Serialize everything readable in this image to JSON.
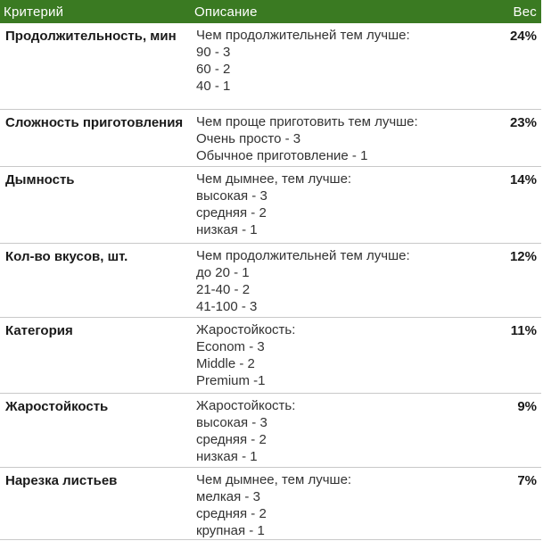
{
  "table": {
    "headers": {
      "criterion": "Критерий",
      "description": "Описание",
      "weight": "Вес"
    },
    "rows": [
      {
        "criterion": "Продолжительность, мин",
        "description": [
          "Чем продолжительней тем лучше:",
          "90 - 3",
          "60 - 2",
          "40 - 1"
        ],
        "weight": "24%"
      },
      {
        "criterion": "Сложность приготовления",
        "description": [
          "Чем проще приготовить тем лучше:",
          "Очень просто - 3",
          "Обычное приготовление - 1"
        ],
        "weight": "23%"
      },
      {
        "criterion": "Дымность",
        "description": [
          "Чем дымнее, тем лучше:",
          "высокая - 3",
          "средняя - 2",
          "низкая - 1"
        ],
        "weight": "14%"
      },
      {
        "criterion": "Кол-во вкусов, шт.",
        "description": [
          "Чем продолжительней тем лучше:",
          "до 20 - 1",
          "21-40 - 2",
          "41-100 - 3"
        ],
        "weight": "12%"
      },
      {
        "criterion": "Категория",
        "description": [
          "Жаростойкость:",
          "Econom - 3",
          "Middle - 2",
          "Premium -1"
        ],
        "weight": "11%"
      },
      {
        "criterion": "Жаростойкость",
        "description": [
          "Жаростойкость:",
          "высокая - 3",
          "средняя - 2",
          "низкая - 1"
        ],
        "weight": "9%"
      },
      {
        "criterion": "Нарезка листьев",
        "description": [
          "Чем дымнее, тем лучше:",
          "мелкая - 3",
          "средняя - 2",
          "крупная - 1"
        ],
        "weight": "7%"
      }
    ]
  },
  "colors": {
    "header_bg": "#3a7a22",
    "header_text": "#ffffff",
    "row_divider": "#c9c9c9"
  }
}
